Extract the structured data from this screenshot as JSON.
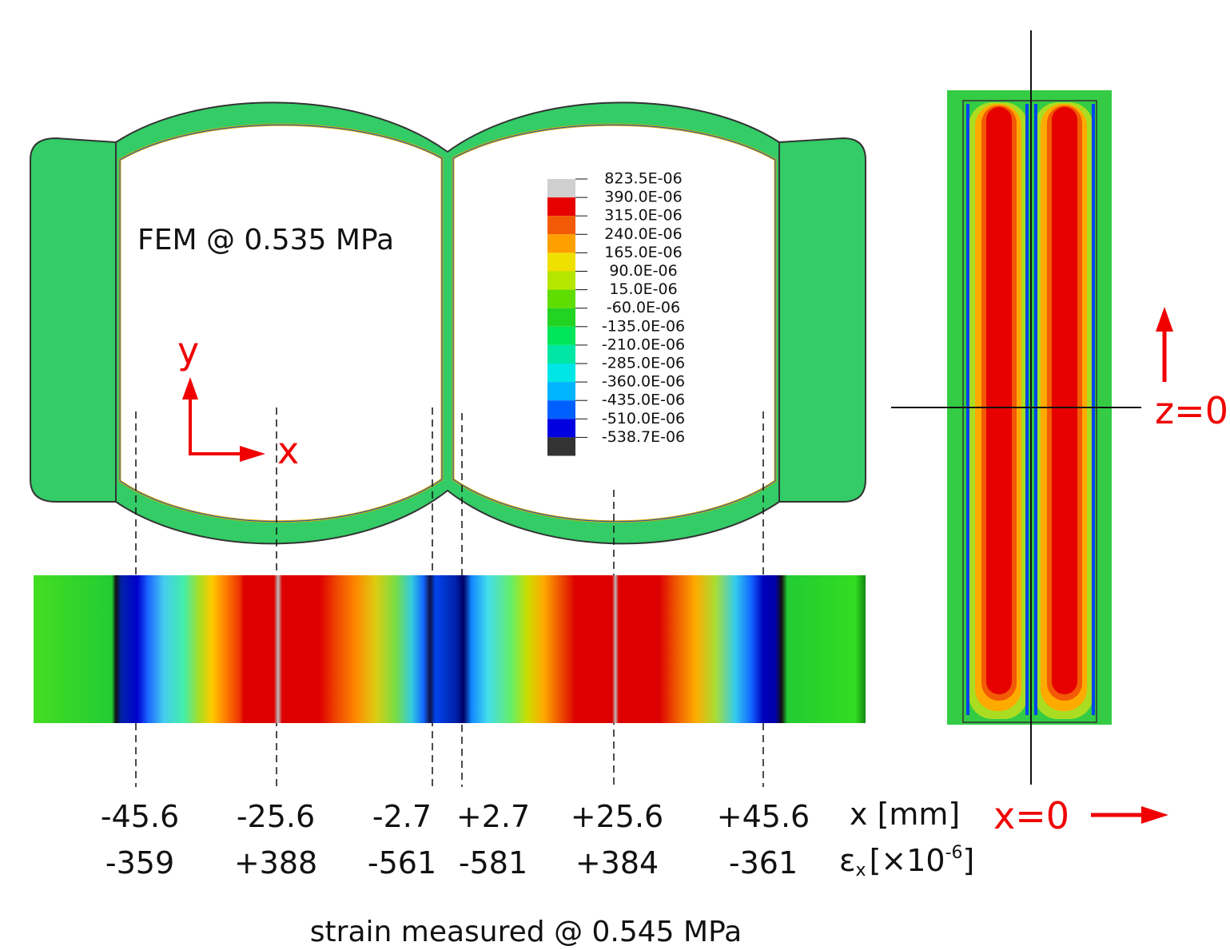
{
  "annotation": "FEM @ 0.535 MPa",
  "legend": {
    "labels": [
      "823.5E-06",
      "390.0E-06",
      "315.0E-06",
      "240.0E-06",
      "165.0E-06",
      "90.0E-06",
      "15.0E-06",
      "-60.0E-06",
      "-135.0E-06",
      "-210.0E-06",
      "-285.0E-06",
      "-360.0E-06",
      "-435.0E-06",
      "-510.0E-06",
      "-538.7E-06"
    ],
    "colors": [
      "#cfcfcf",
      "#e60000",
      "#f25a05",
      "#ffa000",
      "#f0e000",
      "#b4e600",
      "#5fdc00",
      "#22d322",
      "#00e65a",
      "#00e6a5",
      "#00e6e6",
      "#00b4ff",
      "#0060ff",
      "#0000e0",
      "#333333"
    ]
  },
  "axes": {
    "y": "y",
    "x": "x",
    "z_zero": "z=0",
    "x_zero": "x=0"
  },
  "measurements": {
    "x_label": "x [mm]",
    "strain_label": {
      "symbol": "ε",
      "subscript": "x",
      "unit": "[×10",
      "superscript": "-6",
      "close": "]"
    },
    "columns": [
      {
        "x": "-45.6",
        "strain": "-359"
      },
      {
        "x": "-25.6",
        "strain": "+388"
      },
      {
        "x": "-2.7",
        "strain": "-561"
      },
      {
        "x": "+2.7",
        "strain": "-581"
      },
      {
        "x": "+25.6",
        "strain": "+384"
      },
      {
        "x": "+45.6",
        "strain": "-361"
      }
    ]
  },
  "caption": "strain measured @ 0.545 MPa"
}
